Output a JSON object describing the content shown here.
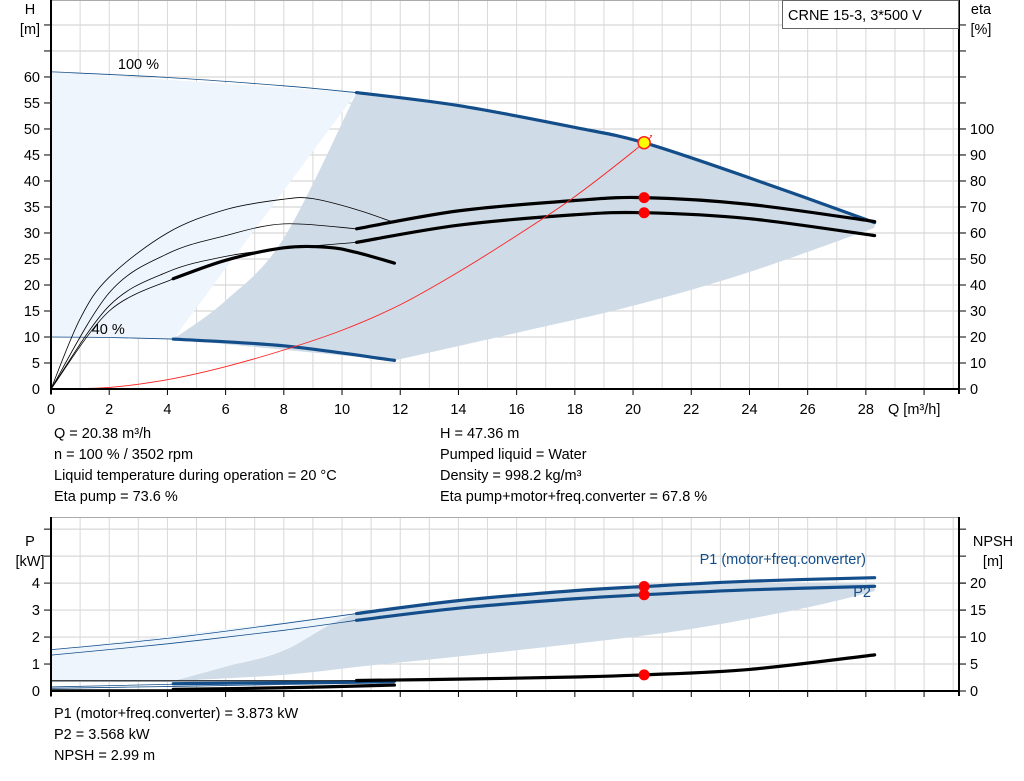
{
  "chart_data": [
    {
      "type": "line",
      "title": "CRNE 15-3, 3*500 V",
      "xlabel": "Q [m³/h]",
      "ylabel_left": [
        "H",
        "[m]"
      ],
      "ylabel_right": [
        "eta",
        "[%]"
      ],
      "xlim": [
        0,
        31.2
      ],
      "ylim_left": [
        0,
        74.8
      ],
      "ylim_right": [
        0,
        149.6
      ],
      "x_ticks": [
        0,
        2,
        4,
        6,
        8,
        10,
        12,
        14,
        16,
        18,
        20,
        22,
        24,
        26,
        28
      ],
      "y_ticks_left": [
        0,
        5,
        10,
        15,
        20,
        25,
        30,
        35,
        40,
        45,
        50,
        55,
        60
      ],
      "y_ticks_right": [
        0,
        10,
        20,
        30,
        40,
        50,
        60,
        70,
        80,
        90,
        100
      ],
      "grid": true,
      "speed_labels": [
        {
          "text": "100 %",
          "q": 2.3,
          "h": 62.5
        },
        {
          "text": "40 %",
          "q": 1.4,
          "h": 11.5
        }
      ],
      "series": [
        {
          "id": "head-100",
          "axis": "left",
          "color": "#134e8a",
          "thin": [
            [
              0,
              61
            ],
            [
              4,
              59.9
            ],
            [
              8,
              58.3
            ],
            [
              10.5,
              57
            ]
          ],
          "thick": [
            [
              10.5,
              57
            ],
            [
              14,
              54.5
            ],
            [
              18,
              50.3
            ],
            [
              20.38,
              47.36
            ],
            [
              24,
              40.6
            ],
            [
              28.3,
              32
            ]
          ]
        },
        {
          "id": "head-40",
          "axis": "left",
          "color": "#134e8a",
          "thin": [
            [
              0,
              10
            ],
            [
              2,
              9.9
            ],
            [
              4.2,
              9.6
            ]
          ],
          "thick": [
            [
              4.2,
              9.6
            ],
            [
              8,
              8.3
            ],
            [
              11.8,
              5.5
            ]
          ]
        },
        {
          "id": "eta-pump-100",
          "axis": "right",
          "color": "#000000",
          "thin": [
            [
              0,
              0
            ],
            [
              2,
              37
            ],
            [
              4,
              52
            ],
            [
              6,
              59
            ],
            [
              8,
              63.5
            ],
            [
              10.5,
              61.6
            ]
          ],
          "thick": [
            [
              10.5,
              61.6
            ],
            [
              14,
              68.5
            ],
            [
              18,
              72.5
            ],
            [
              20.38,
              73.6
            ],
            [
              24,
              71
            ],
            [
              28.3,
              64.4
            ]
          ]
        },
        {
          "id": "eta-total-100",
          "axis": "right",
          "color": "#000000",
          "thin": [
            [
              0,
              0
            ],
            [
              2,
              32
            ],
            [
              4,
              45
            ],
            [
              6,
              51
            ],
            [
              8,
              54
            ],
            [
              10.5,
              56.4
            ]
          ],
          "thick": [
            [
              10.5,
              56.4
            ],
            [
              14,
              63
            ],
            [
              18,
              67
            ],
            [
              20.38,
              67.8
            ],
            [
              24,
              65.5
            ],
            [
              28.3,
              59
            ]
          ]
        },
        {
          "id": "eta-pump-40",
          "axis": "right",
          "color": "#000000",
          "thin": [
            [
              0,
              0
            ],
            [
              1,
              27
            ],
            [
              2,
              43
            ],
            [
              4,
              60
            ],
            [
              6,
              69
            ],
            [
              8,
              73
            ],
            [
              9,
              73.2
            ],
            [
              10.5,
              69
            ],
            [
              11.8,
              64
            ]
          ],
          "thick": []
        },
        {
          "id": "eta-total-40",
          "axis": "right",
          "color": "#000000",
          "thin": [
            [
              0,
              0
            ],
            [
              2,
              30
            ],
            [
              4.2,
              42.4
            ]
          ],
          "thick": [
            [
              4.2,
              42.4
            ],
            [
              6,
              49.5
            ],
            [
              8,
              54.3
            ],
            [
              9.5,
              54.5
            ],
            [
              10.5,
              52.5
            ],
            [
              11.8,
              48.4
            ]
          ]
        },
        {
          "id": "system-curve",
          "axis": "left",
          "color": "#ff2020",
          "thin": [
            [
              0,
              0
            ],
            [
              2,
              0.3
            ],
            [
              4,
              1.8
            ],
            [
              6,
              4.3
            ],
            [
              8,
              7.5
            ],
            [
              10,
              11.3
            ],
            [
              12,
              16.2
            ],
            [
              14,
              22.5
            ],
            [
              16,
              29.5
            ],
            [
              18,
              37
            ],
            [
              20.38,
              47.36
            ],
            [
              20.6,
              48.8
            ]
          ],
          "thick": []
        }
      ],
      "light_region": [
        [
          0,
          61
        ],
        [
          10.5,
          57
        ],
        [
          4.2,
          9.6
        ],
        [
          0,
          10
        ]
      ],
      "dark_region": {
        "left_edge": [
          [
            4.2,
            9.6
          ],
          [
            6,
            17
          ],
          [
            8,
            29
          ],
          [
            10.5,
            57
          ]
        ],
        "bottom_edge": [
          [
            11.8,
            5.5
          ],
          [
            16,
            10.8
          ],
          [
            20,
            16
          ],
          [
            24,
            22.5
          ],
          [
            28.3,
            31
          ]
        ]
      },
      "duty_points": [
        {
          "q": 20.38,
          "h": 47.36,
          "axis": "left",
          "color": "#ffff00",
          "stroke": "#ff2020"
        },
        {
          "q": 20.38,
          "eta": 73.6,
          "axis": "right",
          "color": "#ff0000"
        },
        {
          "q": 20.38,
          "eta": 67.8,
          "axis": "right",
          "color": "#ff0000"
        }
      ]
    },
    {
      "type": "line",
      "xlabel": "",
      "ylabel_left": [
        "P",
        "[kW]"
      ],
      "ylabel_right": [
        "NPSH",
        "[m]"
      ],
      "xlim": [
        0,
        31.2
      ],
      "ylim_left": [
        0,
        6.45
      ],
      "ylim_right": [
        0,
        32.25
      ],
      "y_ticks_left": [
        0,
        1,
        2,
        3,
        4
      ],
      "y_ticks_right": [
        0,
        5,
        10,
        15,
        20
      ],
      "grid": true,
      "series": [
        {
          "id": "p1-100",
          "name": "P1 (motor+freq.converter)",
          "axis": "left",
          "color": "#134e8a",
          "thin": [
            [
              0,
              1.53
            ],
            [
              4,
              1.95
            ],
            [
              8,
              2.5
            ],
            [
              10.5,
              2.87
            ]
          ],
          "thick": [
            [
              10.5,
              2.87
            ],
            [
              14,
              3.35
            ],
            [
              18,
              3.72
            ],
            [
              20.38,
              3.873
            ],
            [
              24,
              4.07
            ],
            [
              28.3,
              4.2
            ]
          ]
        },
        {
          "id": "p2-100",
          "name": "P2",
          "axis": "left",
          "color": "#134e8a",
          "thin": [
            [
              0,
              1.33
            ],
            [
              4,
              1.75
            ],
            [
              8,
              2.25
            ],
            [
              10.5,
              2.62
            ]
          ],
          "thick": [
            [
              10.5,
              2.62
            ],
            [
              14,
              3.07
            ],
            [
              18,
              3.42
            ],
            [
              20.38,
              3.568
            ],
            [
              24,
              3.75
            ],
            [
              28.3,
              3.88
            ]
          ]
        },
        {
          "id": "p1-40",
          "axis": "left",
          "color": "#134e8a",
          "thin": [
            [
              0,
              0.15
            ],
            [
              4.2,
              0.25
            ]
          ],
          "thick": [
            [
              4.2,
              0.27
            ],
            [
              8,
              0.31
            ],
            [
              11.8,
              0.36
            ]
          ]
        },
        {
          "id": "p2-40",
          "axis": "left",
          "color": "#134e8a",
          "thin": [
            [
              0,
              0.1
            ],
            [
              4.2,
              0.17
            ],
            [
              8,
              0.24
            ],
            [
              11.8,
              0.3
            ]
          ],
          "thick": []
        },
        {
          "id": "npsh-100",
          "axis": "right",
          "color": "#000000",
          "thin": [
            [
              0,
              1.9
            ],
            [
              10.5,
              1.9
            ]
          ],
          "thick": [
            [
              10.5,
              1.95
            ],
            [
              14,
              2.2
            ],
            [
              18,
              2.6
            ],
            [
              20.38,
              2.99
            ],
            [
              24,
              4.0
            ],
            [
              28.3,
              6.7
            ]
          ]
        },
        {
          "id": "npsh-40",
          "axis": "right",
          "color": "#000000",
          "thin": [
            [
              0,
              0.3
            ],
            [
              4.2,
              0.3
            ]
          ],
          "thick": [
            [
              4.2,
              0.3
            ],
            [
              8,
              0.6
            ],
            [
              11.8,
              1.1
            ]
          ]
        }
      ],
      "light_region": [
        [
          0,
          1.53
        ],
        [
          10.5,
          2.87
        ],
        [
          10.5,
          2.6
        ],
        [
          8,
          1.5
        ],
        [
          6,
          0.9
        ],
        [
          4.2,
          0.37
        ],
        [
          0,
          0.37
        ]
      ],
      "dark_region": {
        "top": [
          [
            4.2,
            0.37
          ],
          [
            6,
            0.9
          ],
          [
            8,
            1.5
          ],
          [
            10.5,
            2.87
          ],
          [
            14,
            3.35
          ],
          [
            18,
            3.72
          ],
          [
            22,
            3.95
          ],
          [
            28.3,
            4.0
          ]
        ],
        "bottom": [
          [
            28.3,
            3.7
          ],
          [
            26,
            3.1
          ],
          [
            22,
            2.3
          ],
          [
            18,
            1.75
          ],
          [
            14,
            1.28
          ],
          [
            11,
            0.95
          ],
          [
            8,
            0.6
          ],
          [
            4.2,
            0.37
          ]
        ]
      },
      "duty_points": [
        {
          "q": 20.38,
          "p": 3.873,
          "axis": "left",
          "color": "#ff0000"
        },
        {
          "q": 20.38,
          "p": 3.568,
          "axis": "left",
          "color": "#ff0000"
        },
        {
          "q": 20.38,
          "npsh": 2.99,
          "axis": "right",
          "color": "#ff0000"
        }
      ]
    }
  ],
  "info_top_left": [
    "Q = 20.38 m³/h",
    "n = 100 % / 3502 rpm",
    "Liquid temperature during operation = 20 °C",
    "Eta pump = 73.6 %"
  ],
  "info_top_right": [
    "H = 47.36 m",
    "Pumped liquid = Water",
    "Density = 998.2 kg/m³",
    "Eta pump+motor+freq.converter = 67.8 %"
  ],
  "info_bottom": [
    "P1 (motor+freq.converter) = 3.873 kW",
    "P2 = 3.568 kW",
    "NPSH = 2.99 m"
  ]
}
